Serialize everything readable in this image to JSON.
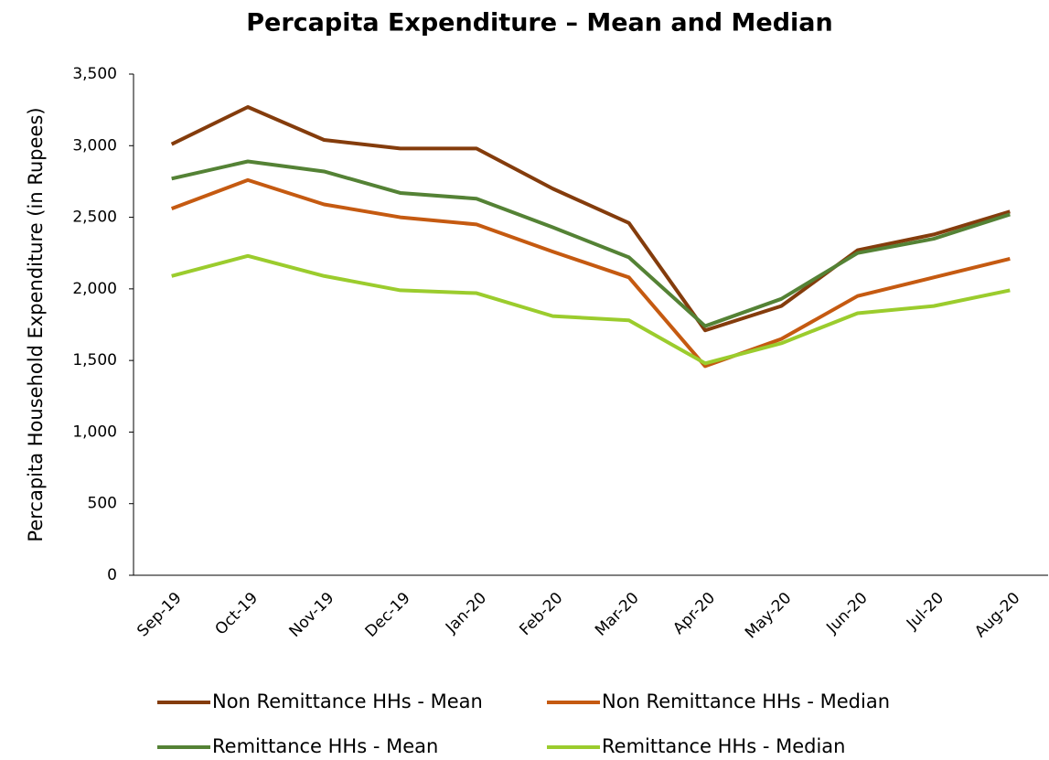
{
  "chart_data": {
    "type": "line",
    "title": "Percapita Expenditure – Mean and Median",
    "y_label": "Percapita Household Expenditure (in Rupees)",
    "categories": [
      "Sep-19",
      "Oct-19",
      "Nov-19",
      "Dec-19",
      "Jan-20",
      "Feb-20",
      "Mar-20",
      "Apr-20",
      "May-20",
      "Jun-20",
      "Jul-20",
      "Aug-20"
    ],
    "series": [
      {
        "name": "Non Remittance HHs - Mean",
        "color": "#843c0c",
        "values": [
          3010,
          3270,
          3040,
          2980,
          2980,
          2700,
          2460,
          1710,
          1880,
          2270,
          2380,
          2540
        ]
      },
      {
        "name": "Non Remittance HHs - Median",
        "color": "#c55a11",
        "values": [
          2560,
          2760,
          2590,
          2500,
          2450,
          2260,
          2080,
          1460,
          1650,
          1950,
          2080,
          2210
        ]
      },
      {
        "name": "Remittance HHs - Mean",
        "color": "#548235",
        "values": [
          2770,
          2890,
          2820,
          2670,
          2630,
          2430,
          2220,
          1740,
          1930,
          2250,
          2350,
          2520
        ]
      },
      {
        "name": "Remittance HHs - Median",
        "color": "#9bcc2d",
        "values": [
          2090,
          2230,
          2090,
          1990,
          1970,
          1810,
          1780,
          1480,
          1620,
          1830,
          1880,
          1990
        ]
      }
    ],
    "ylim": [
      0,
      3500
    ],
    "yticks": [
      0,
      500,
      {
        "value": 1000,
        "label": "1,000"
      },
      {
        "value": 1500,
        "label": "1,500"
      },
      {
        "value": 2000,
        "label": "2,000"
      },
      {
        "value": 2500,
        "label": "2,500"
      },
      {
        "value": 3000,
        "label": "3,000"
      },
      {
        "value": 3500,
        "label": "3,500"
      }
    ],
    "grid": false,
    "legend": "bottom"
  }
}
